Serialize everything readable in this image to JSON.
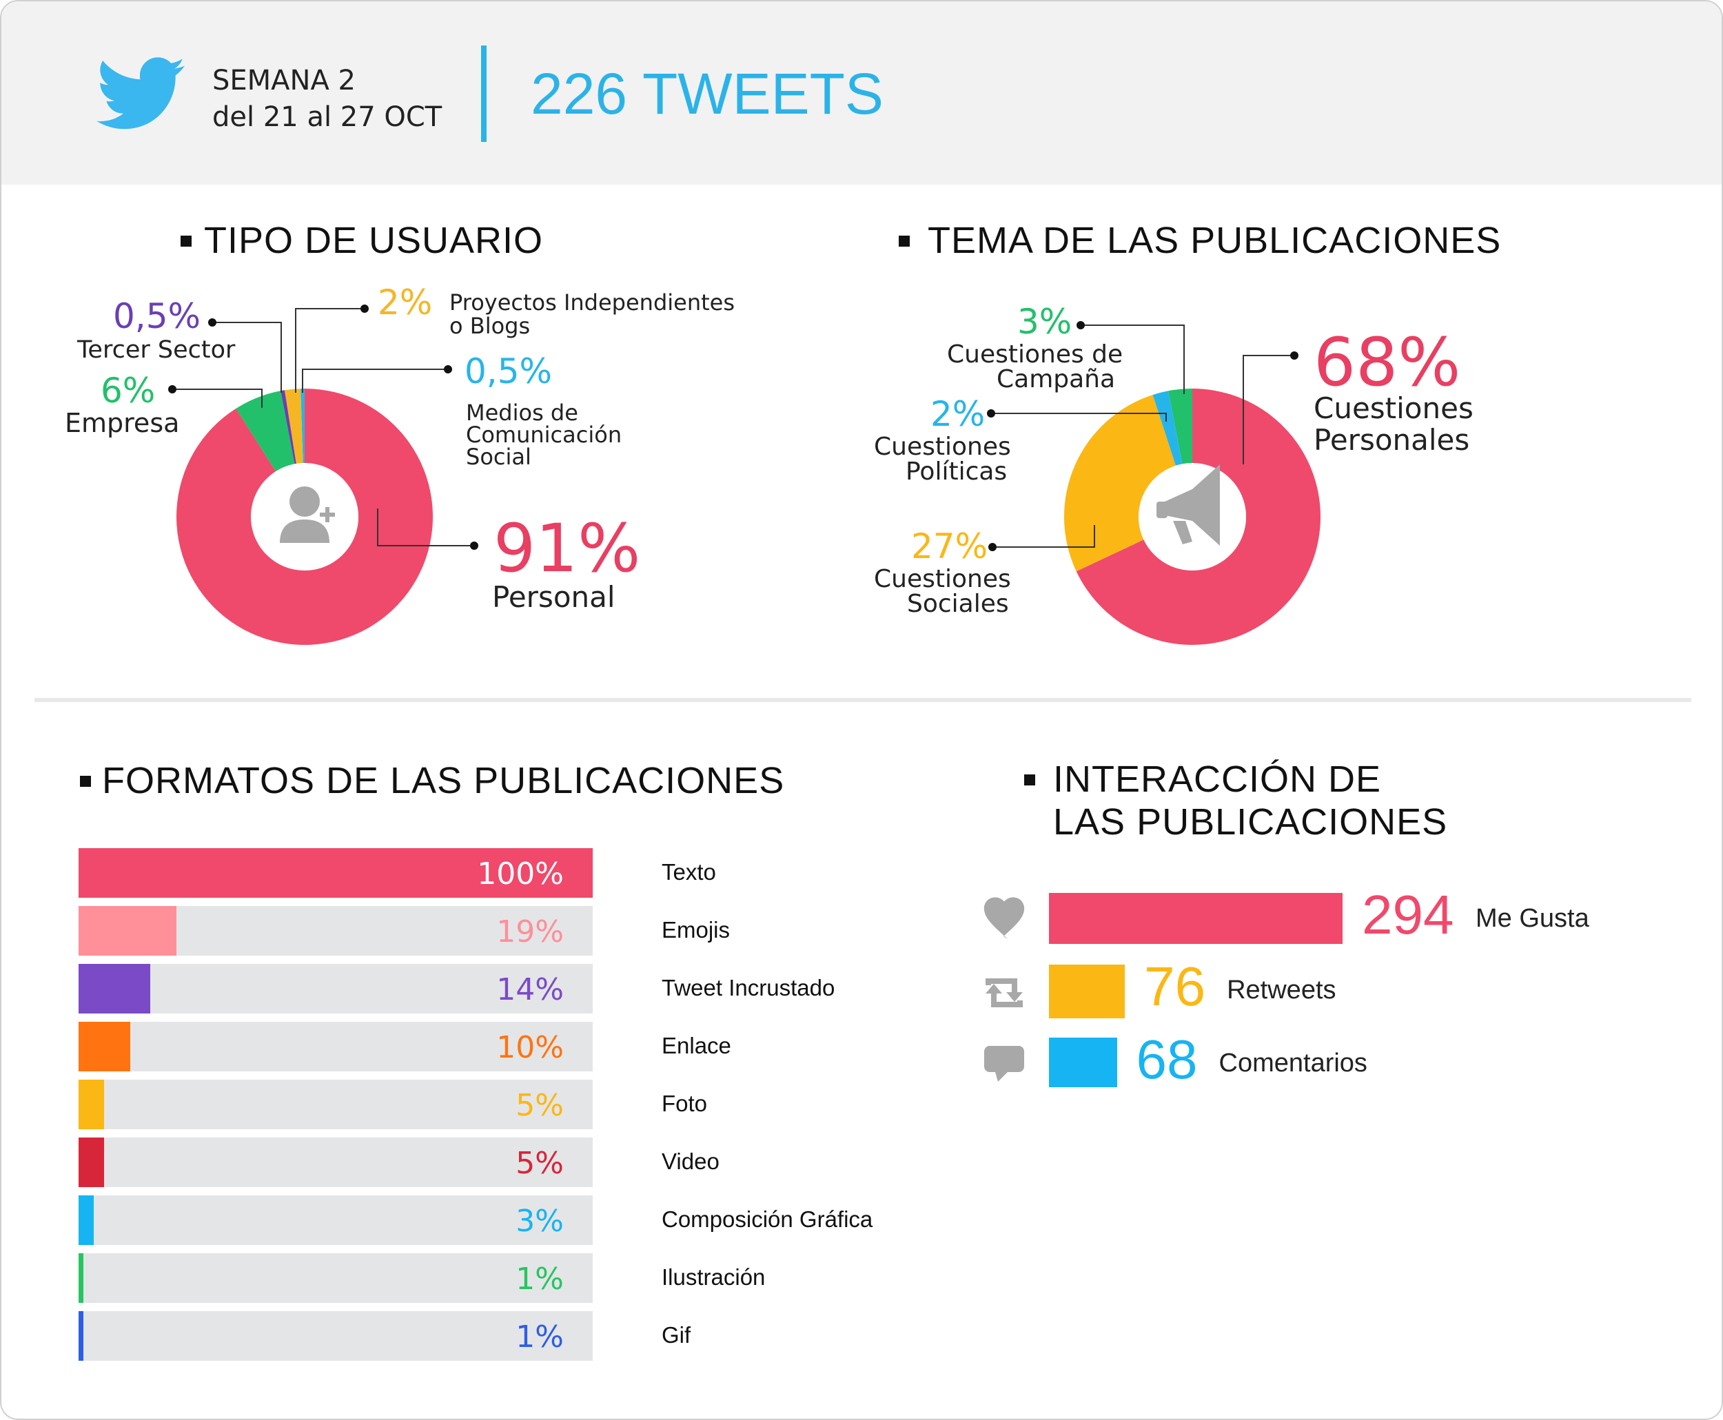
{
  "header": {
    "week_line1": "SEMANA 2",
    "week_line2": "del 21 al 27 OCT",
    "tweets_total": "226 TWEETS",
    "brand_color": "#2bb3e8",
    "logo_icon": "twitter-bird-icon"
  },
  "sections": {
    "user_type_title": "TIPO DE USUARIO",
    "topic_title": "TEMA DE LAS PUBLICACIONES",
    "formats_title": "FORMATOS DE LAS PUBLICACIONES",
    "interaction_title_line1": "INTERACCIÓN DE",
    "interaction_title_line2": "LAS PUBLICACIONES"
  },
  "chart_data": [
    {
      "id": "user_type",
      "type": "pie",
      "donut": true,
      "center_icon": "add-user-icon",
      "slices": [
        {
          "label": "Personal",
          "pct_label": "91%",
          "value": 91,
          "color": "#ef4a6b"
        },
        {
          "label": "Empresa",
          "pct_label": "6%",
          "value": 6,
          "color": "#22c06a"
        },
        {
          "label": "Tercer Sector",
          "pct_label": "0,5%",
          "value": 0.5,
          "color": "#6a3fb6"
        },
        {
          "label_line1": "Proyectos Independientes",
          "label_line2": "o Blogs",
          "pct_label": "2%",
          "value": 2,
          "color": "#f6b623"
        },
        {
          "label_line1": "Medios de",
          "label_line2": "Comunicación",
          "label_line3": "Social",
          "pct_label": "0,5%",
          "value": 0.5,
          "color": "#26b5ea"
        }
      ]
    },
    {
      "id": "topic",
      "type": "pie",
      "donut": true,
      "center_icon": "megaphone-icon",
      "slices": [
        {
          "label_line1": "Cuestiones",
          "label_line2": "Personales",
          "pct_label": "68%",
          "value": 68,
          "color": "#ef4a6b"
        },
        {
          "label_line1": "Cuestiones",
          "label_line2": "Sociales",
          "pct_label": "27%",
          "value": 27,
          "color": "#fbb713"
        },
        {
          "label_line1": "Cuestiones",
          "label_line2": "Políticas",
          "pct_label": "2%",
          "value": 2,
          "color": "#26b5ea"
        },
        {
          "label_line1": "Cuestiones de",
          "label_line2": "Campaña",
          "pct_label": "3%",
          "value": 3,
          "color": "#22c06a"
        }
      ]
    },
    {
      "id": "formats",
      "type": "bar",
      "orientation": "horizontal",
      "ylim": [
        0,
        100
      ],
      "categories": [
        "Texto",
        "Emojis",
        "Tweet Incrustado",
        "Enlace",
        "Foto",
        "Video",
        "Composición Gráfica",
        "Ilustración",
        "Gif"
      ],
      "values": [
        100,
        19,
        14,
        10,
        5,
        5,
        3,
        1,
        1
      ],
      "value_labels": [
        "100%",
        "19%",
        "14%",
        "10%",
        "5%",
        "5%",
        "3%",
        "1%",
        "1%"
      ],
      "colors": [
        "#f0496b",
        "#ff8f99",
        "#7b4ac7",
        "#ff7410",
        "#fbb713",
        "#d72639",
        "#16b4f2",
        "#27c562",
        "#2e5ee5"
      ],
      "label_colors": [
        "#ffffff",
        "#ff8f99",
        "#7b4ac7",
        "#ff7410",
        "#fbb713",
        "#d72639",
        "#16b4f2",
        "#27c562",
        "#2e5ee5"
      ],
      "track_color": "#e4e5e7"
    },
    {
      "id": "interaction",
      "type": "bar",
      "orientation": "horizontal",
      "categories": [
        "Me Gusta",
        "Retweets",
        "Comentarios"
      ],
      "values": [
        294,
        76,
        68
      ],
      "value_labels": [
        "294",
        "76",
        "68"
      ],
      "colors": [
        "#f0496b",
        "#fbb713",
        "#16b4f2"
      ],
      "icons": [
        "heart-icon",
        "retweet-icon",
        "comment-icon"
      ]
    }
  ]
}
